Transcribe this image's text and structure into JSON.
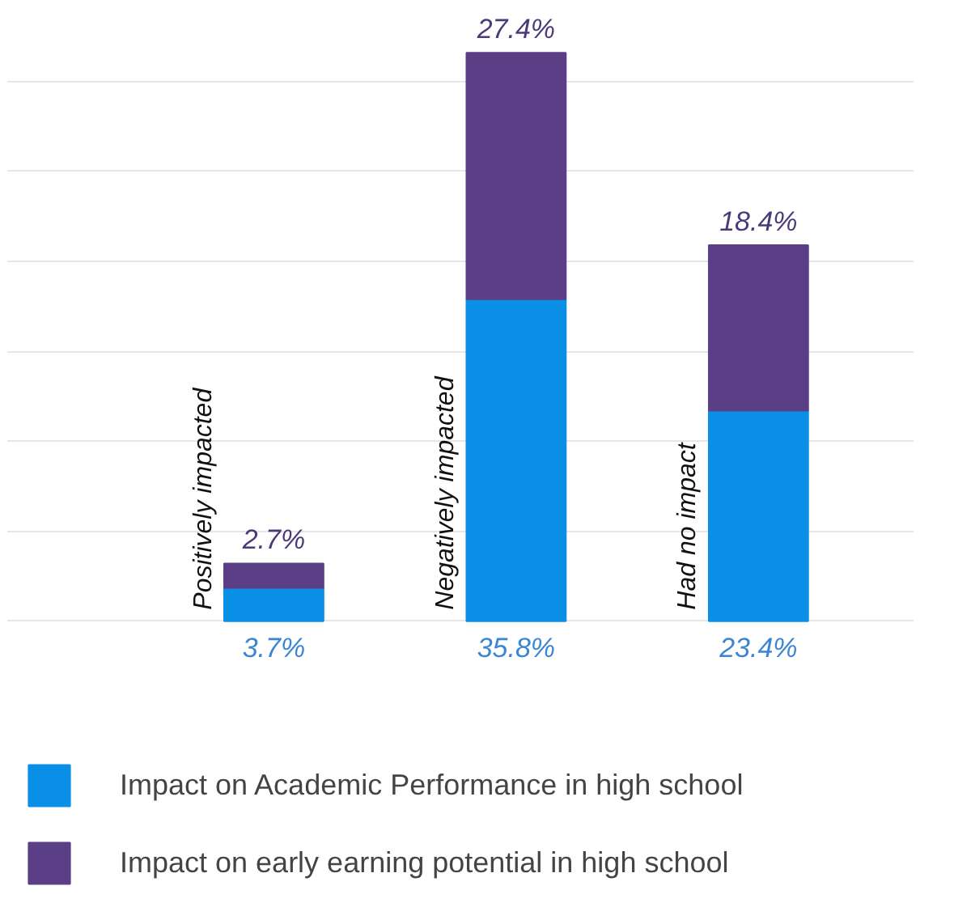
{
  "chart_data": {
    "type": "bar",
    "stacked": true,
    "categories": [
      "Positively impacted",
      "Negatively impacted",
      "Had no impact"
    ],
    "series": [
      {
        "name": "Impact on Academic Performance in high school",
        "color": "#0a8fe6",
        "values": [
          3.7,
          35.8,
          23.4
        ],
        "value_labels": [
          "3.7%",
          "35.8%",
          "23.4%"
        ]
      },
      {
        "name": "Impact on early earning potential in high school",
        "color": "#5b3f86",
        "values": [
          2.7,
          27.4,
          18.4
        ],
        "value_labels": [
          "2.7%",
          "27.4%",
          "18.4%"
        ]
      }
    ],
    "grid": "y",
    "tick_labels": false,
    "legend": "bottom"
  }
}
